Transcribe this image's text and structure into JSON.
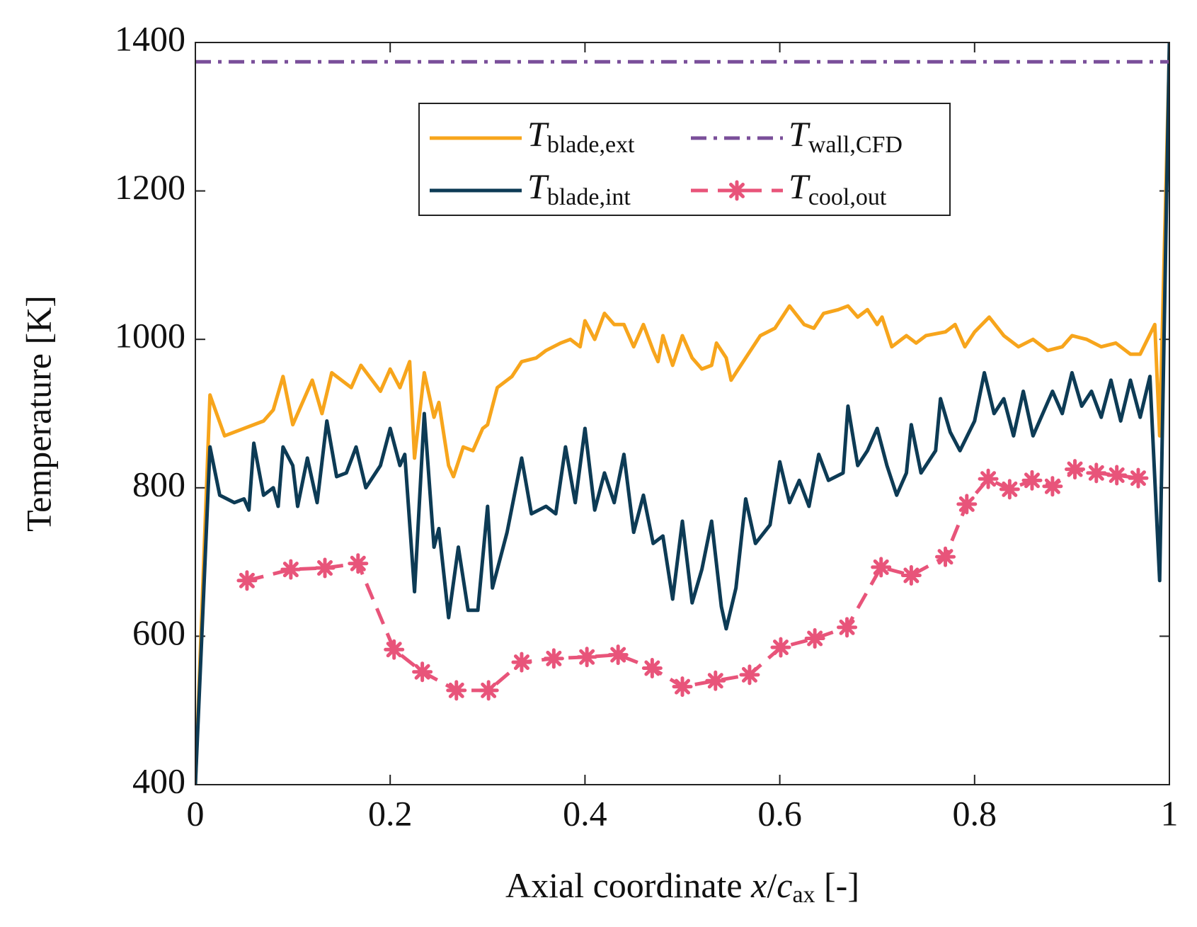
{
  "chart_data": {
    "type": "line",
    "xlabel": "Axial coordinate x/cax [-]",
    "ylabel": "Temperature [K]",
    "xlim": [
      0,
      1
    ],
    "xticks": [
      0,
      0.2,
      0.4,
      0.6,
      0.8,
      1
    ],
    "ylim": [
      400,
      1400
    ],
    "yticks": [
      400,
      600,
      800,
      1000,
      1200,
      1400
    ],
    "grid": false,
    "legend": "top",
    "series": [
      {
        "name": "Tblade,ext",
        "color": "#f7a51c",
        "linestyle": "solid",
        "x": [
          0,
          0.015,
          0.03,
          0.05,
          0.07,
          0.08,
          0.09,
          0.1,
          0.12,
          0.13,
          0.14,
          0.16,
          0.17,
          0.19,
          0.2,
          0.21,
          0.22,
          0.225,
          0.235,
          0.245,
          0.25,
          0.26,
          0.265,
          0.275,
          0.285,
          0.295,
          0.3,
          0.31,
          0.325,
          0.335,
          0.35,
          0.36,
          0.375,
          0.385,
          0.395,
          0.4,
          0.41,
          0.42,
          0.43,
          0.44,
          0.45,
          0.46,
          0.47,
          0.475,
          0.48,
          0.49,
          0.5,
          0.51,
          0.52,
          0.53,
          0.535,
          0.545,
          0.55,
          0.565,
          0.58,
          0.595,
          0.61,
          0.625,
          0.635,
          0.645,
          0.66,
          0.67,
          0.68,
          0.69,
          0.7,
          0.705,
          0.715,
          0.73,
          0.74,
          0.75,
          0.77,
          0.78,
          0.79,
          0.8,
          0.815,
          0.83,
          0.845,
          0.86,
          0.875,
          0.89,
          0.9,
          0.915,
          0.93,
          0.945,
          0.96,
          0.97,
          0.985,
          0.99,
          1
        ],
        "values": [
          400,
          925,
          870,
          880,
          890,
          905,
          950,
          885,
          945,
          900,
          955,
          935,
          965,
          930,
          960,
          935,
          970,
          840,
          955,
          895,
          915,
          830,
          815,
          855,
          850,
          880,
          885,
          935,
          950,
          970,
          975,
          985,
          995,
          1000,
          990,
          1025,
          1000,
          1035,
          1020,
          1020,
          990,
          1020,
          985,
          970,
          1005,
          965,
          1005,
          975,
          960,
          965,
          995,
          975,
          945,
          975,
          1005,
          1015,
          1045,
          1020,
          1015,
          1035,
          1040,
          1045,
          1030,
          1040,
          1020,
          1030,
          990,
          1005,
          995,
          1005,
          1010,
          1020,
          990,
          1010,
          1030,
          1005,
          990,
          1000,
          985,
          990,
          1005,
          1000,
          990,
          995,
          980,
          980,
          1020,
          870,
          1390
        ]
      },
      {
        "name": "Tblade,int",
        "color": "#0d3b55",
        "linestyle": "solid",
        "x": [
          0,
          0.015,
          0.025,
          0.04,
          0.05,
          0.055,
          0.06,
          0.07,
          0.08,
          0.085,
          0.09,
          0.1,
          0.105,
          0.115,
          0.125,
          0.135,
          0.145,
          0.155,
          0.165,
          0.175,
          0.19,
          0.2,
          0.21,
          0.215,
          0.225,
          0.235,
          0.245,
          0.25,
          0.26,
          0.27,
          0.28,
          0.29,
          0.3,
          0.305,
          0.32,
          0.335,
          0.345,
          0.36,
          0.37,
          0.38,
          0.39,
          0.4,
          0.41,
          0.42,
          0.43,
          0.44,
          0.45,
          0.46,
          0.47,
          0.48,
          0.49,
          0.5,
          0.51,
          0.52,
          0.53,
          0.54,
          0.545,
          0.555,
          0.565,
          0.575,
          0.59,
          0.6,
          0.61,
          0.62,
          0.63,
          0.64,
          0.65,
          0.665,
          0.67,
          0.68,
          0.69,
          0.7,
          0.71,
          0.72,
          0.73,
          0.735,
          0.745,
          0.76,
          0.765,
          0.775,
          0.785,
          0.8,
          0.81,
          0.82,
          0.83,
          0.84,
          0.85,
          0.86,
          0.87,
          0.88,
          0.89,
          0.9,
          0.91,
          0.92,
          0.93,
          0.94,
          0.95,
          0.96,
          0.97,
          0.98,
          0.99,
          1
        ],
        "values": [
          400,
          855,
          790,
          780,
          785,
          770,
          860,
          790,
          800,
          775,
          855,
          830,
          775,
          840,
          780,
          890,
          815,
          820,
          855,
          800,
          830,
          880,
          830,
          845,
          660,
          900,
          720,
          745,
          625,
          720,
          635,
          635,
          775,
          665,
          740,
          840,
          765,
          775,
          765,
          855,
          780,
          880,
          770,
          820,
          780,
          845,
          740,
          790,
          725,
          735,
          650,
          755,
          645,
          690,
          755,
          640,
          610,
          665,
          785,
          725,
          750,
          835,
          780,
          810,
          775,
          845,
          810,
          820,
          910,
          830,
          850,
          880,
          830,
          790,
          820,
          885,
          820,
          850,
          920,
          875,
          850,
          890,
          955,
          900,
          920,
          870,
          930,
          870,
          900,
          930,
          900,
          955,
          910,
          930,
          895,
          945,
          890,
          945,
          895,
          950,
          675,
          1400
        ]
      },
      {
        "name": "Twall,CFD",
        "color": "#7a4f9a",
        "linestyle": "dashdot",
        "x": [
          0,
          1
        ],
        "values": [
          1374,
          1374
        ]
      },
      {
        "name": "Tcool,out",
        "color": "#e8547a",
        "linestyle": "dashed",
        "marker": "asterisk",
        "x": [
          0.053,
          0.098,
          0.133,
          0.167,
          0.204,
          0.233,
          0.268,
          0.301,
          0.335,
          0.368,
          0.402,
          0.434,
          0.469,
          0.5,
          0.534,
          0.569,
          0.601,
          0.636,
          0.669,
          0.704,
          0.735,
          0.77,
          0.792,
          0.814,
          0.836,
          0.859,
          0.88,
          0.903,
          0.925,
          0.946,
          0.968
        ],
        "values": [
          675,
          690,
          692,
          698,
          582,
          552,
          527,
          527,
          565,
          570,
          572,
          575,
          557,
          532,
          540,
          548,
          585,
          597,
          612,
          693,
          682,
          707,
          778,
          812,
          798,
          810,
          802,
          825,
          820,
          817,
          813
        ]
      }
    ]
  }
}
